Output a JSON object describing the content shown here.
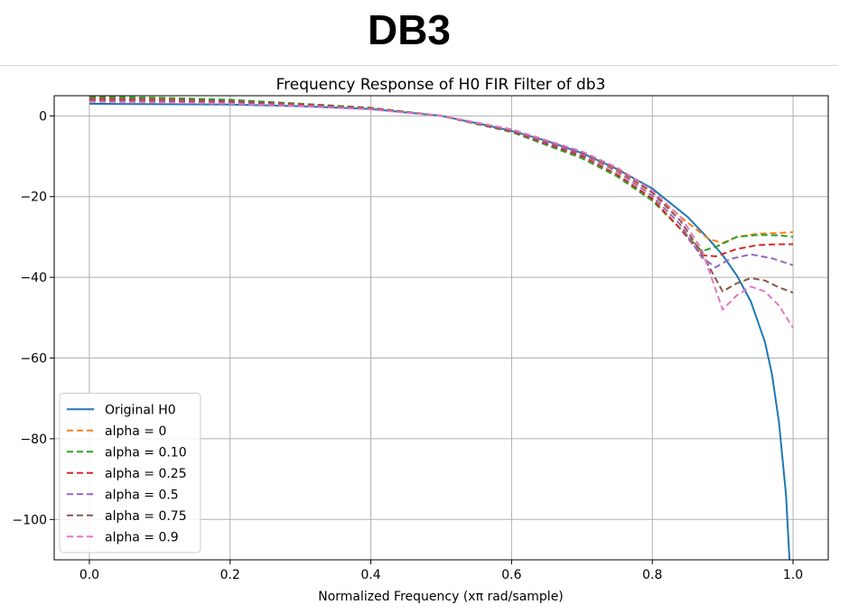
{
  "page": {
    "heading": "DB3"
  },
  "chart_data": {
    "type": "line",
    "title": "Frequency Response of H0 FIR Filter of db3",
    "xlabel": "Normalized Frequency (xπ rad/sample)",
    "ylabel": "",
    "xlim": [
      -0.05,
      1.05
    ],
    "ylim": [
      -110,
      5
    ],
    "xticks": [
      0.0,
      0.2,
      0.4,
      0.6,
      0.8,
      1.0
    ],
    "xtick_labels": [
      "0.0",
      "0.2",
      "0.4",
      "0.6",
      "0.8",
      "1.0"
    ],
    "yticks": [
      0,
      -20,
      -40,
      -60,
      -80,
      -100
    ],
    "ytick_labels": [
      "0",
      "−20",
      "−40",
      "−60",
      "−80",
      "−100"
    ],
    "grid": true,
    "legend_position": "lower-left",
    "series": [
      {
        "name": "Original H0",
        "color": "#1f77b4",
        "dash": false,
        "x": [
          0.0,
          0.1,
          0.2,
          0.3,
          0.4,
          0.5,
          0.55,
          0.6,
          0.65,
          0.7,
          0.75,
          0.8,
          0.85,
          0.88,
          0.9,
          0.92,
          0.94,
          0.96,
          0.97,
          0.98,
          0.99,
          0.995
        ],
        "y": [
          3.0,
          2.9,
          2.8,
          2.4,
          1.7,
          0.0,
          -1.8,
          -3.7,
          -6.2,
          -9.2,
          -13.2,
          -18.0,
          -25.0,
          -30.5,
          -34.5,
          -39.5,
          -46.0,
          -56.0,
          -64.0,
          -76.0,
          -94.0,
          -110.0
        ]
      },
      {
        "name": "alpha = 0",
        "color": "#ff7f0e",
        "dash": true,
        "x": [
          0.0,
          0.1,
          0.2,
          0.3,
          0.4,
          0.5,
          0.6,
          0.7,
          0.75,
          0.8,
          0.84,
          0.88,
          0.9,
          0.92,
          0.95,
          0.98,
          1.0
        ],
        "y": [
          4.5,
          4.2,
          3.8,
          3.0,
          2.0,
          0.0,
          -3.8,
          -9.5,
          -13.5,
          -19.0,
          -25.0,
          -30.5,
          -31.5,
          -30.0,
          -29.2,
          -29.0,
          -28.8
        ]
      },
      {
        "name": "alpha = 0.10",
        "color": "#2ca02c",
        "dash": true,
        "x": [
          0.0,
          0.1,
          0.2,
          0.3,
          0.4,
          0.5,
          0.6,
          0.7,
          0.75,
          0.8,
          0.84,
          0.87,
          0.89,
          0.92,
          0.95,
          0.98,
          1.0
        ],
        "y": [
          4.8,
          4.5,
          4.0,
          3.0,
          2.0,
          0.0,
          -4.0,
          -10.5,
          -15.0,
          -21.0,
          -28.0,
          -33.5,
          -32.5,
          -30.0,
          -29.5,
          -29.6,
          -30.0
        ]
      },
      {
        "name": "alpha = 0.25",
        "color": "#d62728",
        "dash": true,
        "x": [
          0.0,
          0.1,
          0.2,
          0.3,
          0.4,
          0.5,
          0.6,
          0.7,
          0.75,
          0.8,
          0.84,
          0.87,
          0.89,
          0.92,
          0.95,
          0.98,
          1.0
        ],
        "y": [
          4.3,
          4.0,
          3.6,
          2.8,
          1.9,
          0.0,
          -3.8,
          -10.0,
          -14.5,
          -20.5,
          -28.0,
          -34.5,
          -34.8,
          -33.0,
          -32.0,
          -31.8,
          -31.8
        ]
      },
      {
        "name": "alpha = 0.5",
        "color": "#9467bd",
        "dash": true,
        "x": [
          0.0,
          0.1,
          0.2,
          0.3,
          0.4,
          0.5,
          0.6,
          0.7,
          0.75,
          0.8,
          0.84,
          0.87,
          0.89,
          0.91,
          0.94,
          0.97,
          1.0
        ],
        "y": [
          4.0,
          3.7,
          3.4,
          2.6,
          1.8,
          0.0,
          -3.6,
          -9.5,
          -13.8,
          -19.8,
          -27.0,
          -35.0,
          -37.5,
          -35.5,
          -34.3,
          -35.3,
          -37.0
        ]
      },
      {
        "name": "alpha = 0.75",
        "color": "#8c564b",
        "dash": true,
        "x": [
          0.0,
          0.1,
          0.2,
          0.3,
          0.4,
          0.5,
          0.6,
          0.7,
          0.75,
          0.8,
          0.84,
          0.87,
          0.9,
          0.92,
          0.94,
          0.96,
          0.98,
          1.0
        ],
        "y": [
          3.8,
          3.5,
          3.2,
          2.5,
          1.7,
          0.0,
          -3.4,
          -9.0,
          -13.0,
          -19.0,
          -26.0,
          -34.0,
          -43.5,
          -41.5,
          -40.2,
          -40.8,
          -42.5,
          -43.8
        ]
      },
      {
        "name": "alpha = 0.9",
        "color": "#e377c2",
        "dash": true,
        "x": [
          0.0,
          0.1,
          0.2,
          0.3,
          0.4,
          0.5,
          0.6,
          0.7,
          0.75,
          0.8,
          0.84,
          0.87,
          0.9,
          0.92,
          0.94,
          0.96,
          0.98,
          1.0
        ],
        "y": [
          3.5,
          3.3,
          3.0,
          2.4,
          1.6,
          0.0,
          -3.3,
          -8.8,
          -12.8,
          -18.5,
          -25.0,
          -33.0,
          -48.0,
          -44.5,
          -42.3,
          -43.5,
          -47.0,
          -52.5
        ]
      }
    ]
  }
}
